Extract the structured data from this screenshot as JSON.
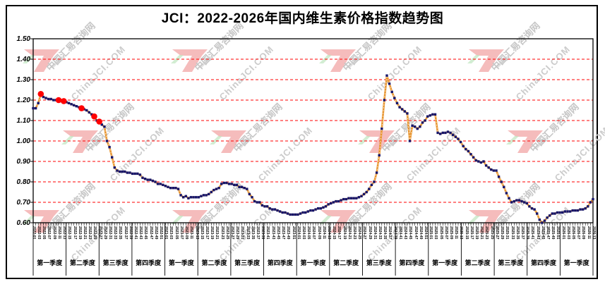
{
  "title": "JCI：2022-2026年国内维生素价格指数趋势图",
  "watermark": {
    "cn": "中国汇易咨询网",
    "en": "ChinaJCI.COM"
  },
  "chart_data": {
    "type": "line",
    "title": "JCI：2022-2026年国内维生素价格指数趋势图",
    "xlabel": "",
    "ylabel": "",
    "ylim": [
      0.6,
      1.5
    ],
    "ytick_step": 0.1,
    "grid": "horizontal red dashed lines at 0.70–1.40",
    "legend_position": "none",
    "x_unit": "week (2022 W1 – 2026 W13)",
    "x_tick_label_stride": 2,
    "quarter_labels": [
      "第一季度",
      "第二季度",
      "第三季度",
      "第四季度",
      "第一季度",
      "第二季度",
      "第三季度",
      "第四季度",
      "第一季度",
      "第二季度",
      "第三季度",
      "第四季度",
      "第一季度",
      "第二季度",
      "第三季度",
      "第四季度",
      "第一季度"
    ],
    "x_labels": [
      "2022-01",
      "2022-03",
      "2022-05",
      "2022-07",
      "2022-09",
      "2022-11",
      "2022-13",
      "2022-15",
      "2022-17",
      "2022-19",
      "2022-21",
      "2022-23",
      "2022-25",
      "2022-27",
      "2022-29",
      "2022-31",
      "2022-33",
      "2022-35",
      "2022-37",
      "2022-39",
      "2022-41",
      "2022-43",
      "2022-45",
      "2022-47",
      "2022-49",
      "2022-51",
      "2023-01",
      "2023-03",
      "2023-05",
      "2023-07",
      "2023-09",
      "2023-11",
      "2023-13",
      "2023-15",
      "2023-17",
      "2023-19",
      "2023-21",
      "2023-23",
      "2023-25",
      "2023-27",
      "2023-29",
      "2023-31",
      "2023-33",
      "2023-35",
      "2023-37",
      "2023-39",
      "2023-41",
      "2023-43",
      "2023-45",
      "2023-47",
      "2023-49",
      "2023-51",
      "2024-01",
      "2024-03",
      "2024-05",
      "2024-07",
      "2024-09",
      "2024-11",
      "2024-13",
      "2024-15",
      "2024-17",
      "2024-19",
      "2024-21",
      "2024-23",
      "2024-25",
      "2024-27",
      "2024-29",
      "2024-31",
      "2024-33",
      "2024-35",
      "2024-37",
      "2024-39",
      "2024-41",
      "2024-43",
      "2024-45",
      "2024-47",
      "2024-49",
      "2024-51",
      "2025-01",
      "2025-03",
      "2025-05",
      "2025-07",
      "2025-09",
      "2025-11",
      "2025-13",
      "2025-15",
      "2025-17",
      "2025-19",
      "2025-21",
      "2025-23",
      "2025-25",
      "2025-27",
      "2025-29",
      "2025-31",
      "2025-33",
      "2025-35",
      "2025-37",
      "2025-39",
      "2025-41",
      "2025-43",
      "2025-45",
      "2025-47",
      "2025-49",
      "2025-51",
      "2026-01",
      "2026-03",
      "2026-05",
      "2026-07",
      "2026-09",
      "2026-11",
      "2026-13"
    ],
    "values": [
      1.16,
      1.16,
      1.185,
      1.23,
      1.215,
      1.21,
      1.205,
      1.205,
      1.2,
      1.2,
      1.2,
      1.195,
      1.195,
      1.19,
      1.185,
      1.18,
      1.175,
      1.17,
      1.165,
      1.16,
      1.155,
      1.15,
      1.14,
      1.13,
      1.12,
      1.1,
      1.095,
      1.08,
      1.07,
      1.0,
      0.97,
      0.92,
      0.87,
      0.855,
      0.85,
      0.85,
      0.85,
      0.845,
      0.845,
      0.84,
      0.84,
      0.84,
      0.835,
      0.82,
      0.815,
      0.81,
      0.81,
      0.805,
      0.8,
      0.79,
      0.79,
      0.785,
      0.78,
      0.775,
      0.77,
      0.77,
      0.77,
      0.765,
      0.735,
      0.725,
      0.73,
      0.72,
      0.725,
      0.725,
      0.725,
      0.725,
      0.73,
      0.735,
      0.735,
      0.74,
      0.75,
      0.76,
      0.765,
      0.77,
      0.79,
      0.795,
      0.795,
      0.79,
      0.79,
      0.785,
      0.785,
      0.775,
      0.775,
      0.77,
      0.765,
      0.74,
      0.725,
      0.705,
      0.7,
      0.7,
      0.685,
      0.68,
      0.68,
      0.67,
      0.665,
      0.665,
      0.66,
      0.655,
      0.65,
      0.65,
      0.645,
      0.64,
      0.64,
      0.64,
      0.64,
      0.645,
      0.65,
      0.65,
      0.655,
      0.66,
      0.66,
      0.665,
      0.67,
      0.67,
      0.675,
      0.68,
      0.69,
      0.695,
      0.7,
      0.705,
      0.705,
      0.71,
      0.715,
      0.715,
      0.72,
      0.72,
      0.72,
      0.72,
      0.725,
      0.73,
      0.74,
      0.75,
      0.765,
      0.785,
      0.8,
      0.845,
      0.93,
      1.06,
      1.2,
      1.32,
      1.28,
      1.24,
      1.21,
      1.185,
      1.165,
      1.155,
      1.145,
      1.135,
      1.0,
      1.075,
      1.07,
      1.06,
      1.07,
      1.09,
      1.1,
      1.12,
      1.125,
      1.13,
      1.13,
      1.04,
      1.035,
      1.04,
      1.04,
      1.045,
      1.04,
      1.03,
      1.02,
      1.01,
      0.995,
      0.975,
      0.96,
      0.95,
      0.935,
      0.92,
      0.905,
      0.9,
      0.895,
      0.9,
      0.88,
      0.87,
      0.86,
      0.855,
      0.855,
      0.825,
      0.8,
      0.775,
      0.745,
      0.72,
      0.7,
      0.705,
      0.71,
      0.71,
      0.705,
      0.7,
      0.695,
      0.68,
      0.67,
      0.665,
      0.645,
      0.615,
      0.6,
      0.61,
      0.625,
      0.635,
      0.645,
      0.645,
      0.65,
      0.65,
      0.65,
      0.655,
      0.655,
      0.655,
      0.66,
      0.66,
      0.66,
      0.665,
      0.665,
      0.67,
      0.68,
      0.7,
      0.715
    ],
    "highlight_indices": [
      3,
      10,
      12,
      19,
      24,
      26
    ],
    "highlight_meaning": "red-circled points in early 2022",
    "colors": {
      "line": "#E8952F",
      "marker": "#16166B",
      "highlight": "#FF0000",
      "grid": "#FF0000",
      "axis": "#000000"
    }
  }
}
